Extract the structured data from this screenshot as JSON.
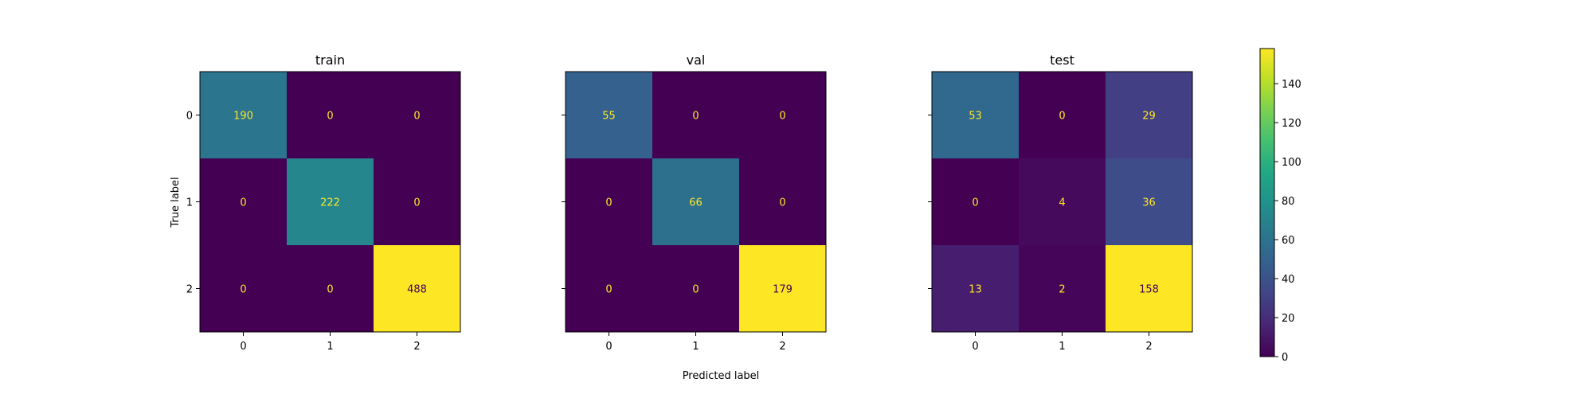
{
  "chart_data": {
    "type": "heatmap",
    "xlabel": "Predicted label",
    "ylabel": "True label",
    "row_categories": [
      "0",
      "1",
      "2"
    ],
    "col_categories": [
      "0",
      "1",
      "2"
    ],
    "colormap": "viridis",
    "colorbar": {
      "min": 0,
      "max": 158,
      "ticks": [
        0,
        20,
        40,
        60,
        80,
        100,
        120,
        140
      ]
    },
    "panels": [
      {
        "title": "train",
        "matrix": [
          [
            190,
            0,
            0
          ],
          [
            0,
            222,
            0
          ],
          [
            0,
            0,
            488
          ]
        ]
      },
      {
        "title": "val",
        "matrix": [
          [
            55,
            0,
            0
          ],
          [
            0,
            66,
            0
          ],
          [
            0,
            0,
            179
          ]
        ]
      },
      {
        "title": "test",
        "matrix": [
          [
            53,
            0,
            29
          ],
          [
            0,
            4,
            36
          ],
          [
            13,
            2,
            158
          ]
        ]
      }
    ]
  }
}
